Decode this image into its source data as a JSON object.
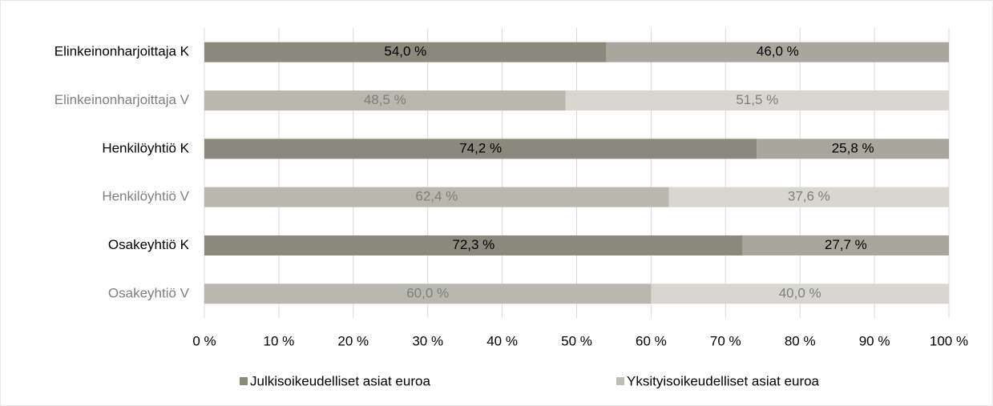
{
  "chart_data": {
    "type": "stacked-bar-horizontal",
    "categories": [
      "Elinkeinonharjoittaja K",
      "Elinkeinonharjoittaja V",
      "Henkilöyhtiö K",
      "Henkilöyhtiö V",
      "Osakeyhtiö K",
      "Osakeyhtiö V"
    ],
    "category_label_colors": [
      "#000000",
      "#7f7f7f",
      "#000000",
      "#7f7f7f",
      "#000000",
      "#7f7f7f"
    ],
    "series": [
      {
        "name": "Julkisoikeudelliset asiat euroa",
        "color": "#8b897c",
        "bar_colors": [
          "#8b897c",
          "#b9b8ae",
          "#8b897c",
          "#b9b8ae",
          "#8b897c",
          "#b9b8ae"
        ],
        "values": [
          54.0,
          48.5,
          74.2,
          62.4,
          72.3,
          60.0
        ],
        "value_labels": [
          "54,0 %",
          "48,5 %",
          "74,2 %",
          "62,4 %",
          "72,3 %",
          "60,0 %"
        ]
      },
      {
        "name": "Yksityisoikeudelliset asiat euroa",
        "color": "#bebdb3",
        "bar_colors": [
          "#a9a79d",
          "#d7d6cf",
          "#a9a79d",
          "#d7d6cf",
          "#a9a79d",
          "#d7d6cf"
        ],
        "values": [
          46.0,
          51.5,
          25.8,
          37.6,
          27.7,
          40.0
        ],
        "value_labels": [
          "46,0 %",
          "51,5 %",
          "25,8 %",
          "37,6 %",
          "27,7 %",
          "40,0 %"
        ]
      }
    ],
    "xlim": [
      0,
      100
    ],
    "xticks": [
      {
        "value": 0,
        "label": "0 %"
      },
      {
        "value": 10,
        "label": "10 %"
      },
      {
        "value": 20,
        "label": "20 %"
      },
      {
        "value": 30,
        "label": "30 %"
      },
      {
        "value": 40,
        "label": "40 %"
      },
      {
        "value": 50,
        "label": "50 %"
      },
      {
        "value": 60,
        "label": "60 %"
      },
      {
        "value": 70,
        "label": "70 %"
      },
      {
        "value": 80,
        "label": "80 %"
      },
      {
        "value": 90,
        "label": "90 %"
      },
      {
        "value": 100,
        "label": "100 %"
      }
    ],
    "grid": true,
    "legend": "bottom"
  }
}
